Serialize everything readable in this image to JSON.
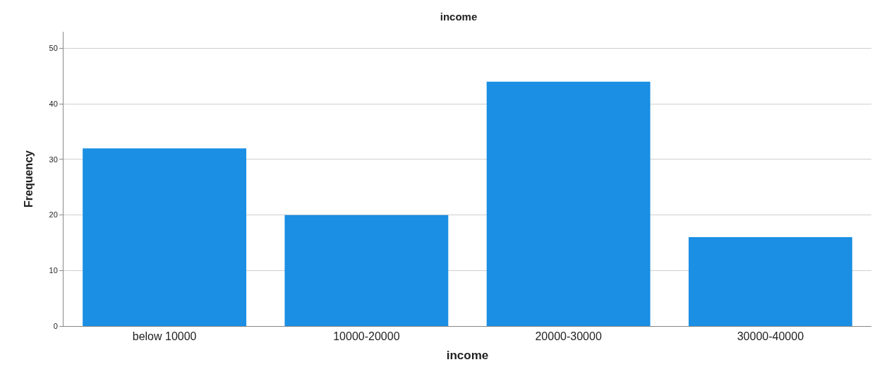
{
  "chart_data": {
    "type": "bar",
    "title": "income",
    "xlabel": "income",
    "ylabel": "Frequency",
    "categories": [
      "below 10000",
      "10000-20000",
      "20000-30000",
      "30000-40000"
    ],
    "values": [
      32,
      20,
      44,
      16
    ],
    "color": "#1a8fe3",
    "ylim": [
      0,
      53
    ],
    "yticks": [
      0,
      10,
      20,
      30,
      40,
      50
    ],
    "grid": "y",
    "legend": false
  }
}
